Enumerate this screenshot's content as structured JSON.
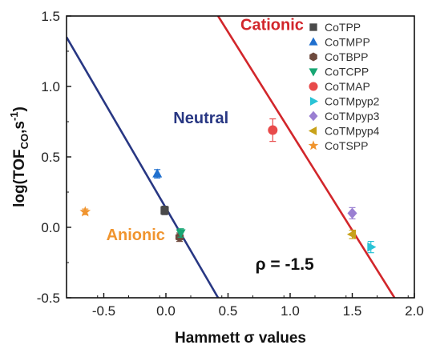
{
  "chart_data": {
    "type": "scatter",
    "xlabel": "Hammett σ values",
    "ylabel_main": "log(TOF",
    "ylabel_sub": "CO",
    "ylabel_tail": ",s",
    "ylabel_sup": "-1",
    "ylabel_close": ")",
    "xlim": [
      -0.8,
      2.0
    ],
    "ylim": [
      -0.5,
      1.5
    ],
    "xticks": [
      -0.5,
      0.0,
      0.5,
      1.0,
      1.5,
      2.0
    ],
    "xtick_labels": [
      "-0.5",
      "0.0",
      "0.5",
      "1.0",
      "1.5",
      "2.0"
    ],
    "yticks": [
      -0.5,
      0.0,
      0.5,
      1.0,
      1.5
    ],
    "ytick_labels": [
      "-0.5",
      "0.0",
      "0.5",
      "1.0",
      "1.5"
    ],
    "legend_position": "top-right",
    "series": [
      {
        "name": "CoTPP",
        "marker": "square",
        "color": "#4a4a4a",
        "x": -0.01,
        "y": 0.12,
        "err": 0.03
      },
      {
        "name": "CoTMPP",
        "marker": "triangle-up",
        "color": "#1f6fce",
        "x": -0.07,
        "y": 0.38,
        "err": 0.03
      },
      {
        "name": "CoTBPP",
        "marker": "hexagon",
        "color": "#6e4a3e",
        "x": 0.11,
        "y": -0.07,
        "err": 0.03
      },
      {
        "name": "CoTCPP",
        "marker": "triangle-down",
        "color": "#17a673",
        "x": 0.12,
        "y": -0.04,
        "err": 0.03
      },
      {
        "name": "CoTMAP",
        "marker": "circle",
        "color": "#e84a4a",
        "x": 0.86,
        "y": 0.69,
        "err": 0.08
      },
      {
        "name": "CoTMpyp2",
        "marker": "triangle-right",
        "color": "#29c3d6",
        "x": 1.65,
        "y": -0.14,
        "err": 0.04
      },
      {
        "name": "CoTMpyp3",
        "marker": "diamond",
        "color": "#9a7fd2",
        "x": 1.5,
        "y": 0.1,
        "err": 0.04
      },
      {
        "name": "CoTMpyp4",
        "marker": "triangle-left",
        "color": "#c8a21a",
        "x": 1.5,
        "y": -0.05,
        "err": 0.03
      },
      {
        "name": "CoTSPP",
        "marker": "star",
        "color": "#f0942e",
        "x": -0.65,
        "y": 0.11,
        "err": 0.02
      }
    ],
    "fit_lines": [
      {
        "name": "Neutral",
        "color": "#283783",
        "x": [
          -0.8,
          0.42
        ],
        "y": [
          1.35,
          -0.5
        ]
      },
      {
        "name": "Cationic",
        "color": "#d2262b",
        "x": [
          0.42,
          1.84
        ],
        "y": [
          1.5,
          -0.5
        ]
      }
    ],
    "annotations": [
      {
        "text": "Cationic",
        "color": "#d2262b",
        "x": 0.6,
        "y": 1.4
      },
      {
        "text": "Neutral",
        "color": "#283783",
        "x": 0.06,
        "y": 0.74
      },
      {
        "text": "Anionic",
        "color": "#f0942e",
        "x": -0.48,
        "y": -0.09
      },
      {
        "text": "ρ = -1.5",
        "color": "#111111",
        "x": 0.72,
        "y": -0.3
      }
    ]
  }
}
